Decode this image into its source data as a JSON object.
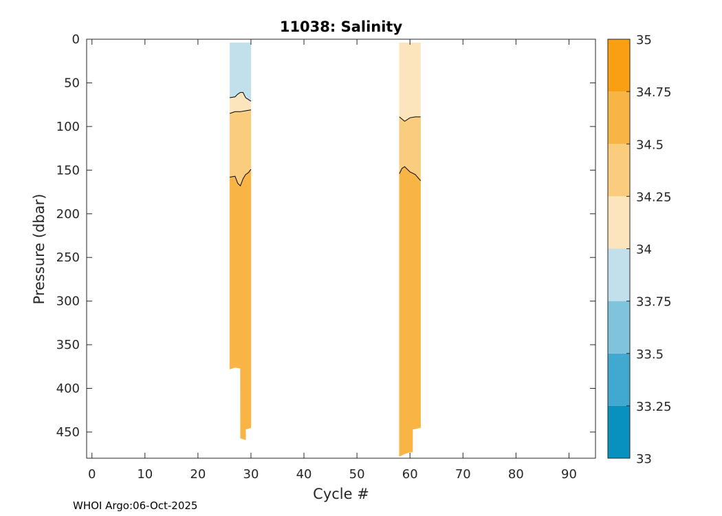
{
  "chart_data": {
    "type": "heatmap",
    "title": "11038:  Salinity",
    "xlabel": "Cycle #",
    "ylabel": "Pressure (dbar)",
    "xlim": [
      -1,
      95
    ],
    "ylim": [
      480,
      0
    ],
    "y_reversed": true,
    "xticks": [
      0,
      10,
      20,
      30,
      40,
      50,
      60,
      70,
      80,
      90
    ],
    "yticks": [
      0,
      50,
      100,
      150,
      200,
      250,
      300,
      350,
      400,
      450
    ],
    "grid": false,
    "colorbar": {
      "levels": [
        33,
        33.25,
        33.5,
        33.75,
        34,
        34.25,
        34.5,
        34.75,
        35
      ],
      "tick_labels": [
        "33",
        "33.25",
        "33.5",
        "33.75",
        "34",
        "34.25",
        "34.5",
        "34.75",
        "35"
      ],
      "colors": [
        "#0891BF",
        "#41A8CF",
        "#80C3DD",
        "#C1E0EC",
        "#FCE5BC",
        "#FACC7D",
        "#F9B446",
        "#FA9E12"
      ]
    },
    "profiles": [
      {
        "x_range": [
          26,
          30
        ],
        "bands": [
          {
            "salinity_bin": "33.75-34",
            "top": [
              [
                26,
                4
              ],
              [
                30,
                4
              ]
            ],
            "bottom": [
              [
                26,
                67
              ],
              [
                27,
                66
              ],
              [
                28,
                61
              ],
              [
                28.5,
                61
              ],
              [
                29,
                67
              ],
              [
                30,
                71
              ]
            ]
          },
          {
            "salinity_bin": "34-34.25",
            "top": [
              [
                26,
                67
              ],
              [
                27,
                66
              ],
              [
                28,
                61
              ],
              [
                28.5,
                61
              ],
              [
                29,
                67
              ],
              [
                30,
                71
              ]
            ],
            "bottom": [
              [
                26,
                85
              ],
              [
                27,
                83
              ],
              [
                28,
                83
              ],
              [
                29,
                82
              ],
              [
                30,
                81
              ]
            ]
          },
          {
            "salinity_bin": "34.25-34.5",
            "top": [
              [
                26,
                85
              ],
              [
                27,
                83
              ],
              [
                28,
                83
              ],
              [
                29,
                82
              ],
              [
                30,
                81
              ]
            ],
            "bottom": [
              [
                26,
                158
              ],
              [
                27,
                157
              ],
              [
                27.5,
                165
              ],
              [
                28,
                168
              ],
              [
                28.5,
                160
              ],
              [
                29,
                155
              ],
              [
                30,
                149
              ]
            ]
          },
          {
            "salinity_bin": "34.5-34.75",
            "top": [
              [
                26,
                158
              ],
              [
                27,
                157
              ],
              [
                27.5,
                165
              ],
              [
                28,
                168
              ],
              [
                28.5,
                160
              ],
              [
                29,
                155
              ],
              [
                30,
                149
              ]
            ],
            "bottom": [
              [
                26,
                378
              ],
              [
                27,
                376
              ],
              [
                28,
                377
              ],
              [
                28.01,
                457
              ],
              [
                29,
                459
              ],
              [
                29.01,
                447
              ],
              [
                30,
                445
              ]
            ]
          }
        ],
        "contours": [
          [
            [
              26,
              67
            ],
            [
              27,
              66
            ],
            [
              27.5,
              63
            ],
            [
              28,
              61
            ],
            [
              28.5,
              61
            ],
            [
              29,
              67
            ],
            [
              30,
              71
            ]
          ],
          [
            [
              26,
              85
            ],
            [
              27,
              83
            ],
            [
              28,
              83
            ],
            [
              29,
              82
            ],
            [
              30,
              81
            ]
          ],
          [
            [
              26,
              158
            ],
            [
              27,
              157
            ],
            [
              27.5,
              165
            ],
            [
              28,
              168
            ],
            [
              28.5,
              160
            ],
            [
              29,
              155
            ],
            [
              29.5,
              153
            ],
            [
              30,
              149
            ]
          ]
        ]
      },
      {
        "x_range": [
          58,
          62
        ],
        "bands": [
          {
            "salinity_bin": "34-34.25",
            "top": [
              [
                58,
                4
              ],
              [
                62,
                4
              ]
            ],
            "bottom": [
              [
                58,
                89
              ],
              [
                59,
                94
              ],
              [
                60,
                90
              ],
              [
                61,
                89
              ],
              [
                62,
                89
              ]
            ]
          },
          {
            "salinity_bin": "34.25-34.5",
            "top": [
              [
                58,
                89
              ],
              [
                59,
                94
              ],
              [
                60,
                90
              ],
              [
                61,
                89
              ],
              [
                62,
                89
              ]
            ],
            "bottom": [
              [
                58,
                154
              ],
              [
                59,
                146
              ],
              [
                60,
                152
              ],
              [
                61,
                155
              ],
              [
                62,
                162
              ]
            ]
          },
          {
            "salinity_bin": "34.5-34.75",
            "top": [
              [
                58,
                154
              ],
              [
                59,
                146
              ],
              [
                60,
                152
              ],
              [
                61,
                155
              ],
              [
                62,
                162
              ]
            ],
            "bottom": [
              [
                58,
                478
              ],
              [
                59,
                475
              ],
              [
                60,
                473
              ],
              [
                60.5,
                473
              ],
              [
                60.51,
                447
              ],
              [
                62,
                445
              ]
            ]
          }
        ],
        "contours": [
          [
            [
              58,
              89
            ],
            [
              59,
              94
            ],
            [
              60,
              90
            ],
            [
              61,
              89
            ],
            [
              62,
              89
            ]
          ],
          [
            [
              58,
              154
            ],
            [
              58.5,
              148
            ],
            [
              59,
              146
            ],
            [
              60,
              152
            ],
            [
              61,
              155
            ],
            [
              62,
              162
            ]
          ]
        ]
      }
    ]
  },
  "footer": "WHOI Argo:06-Oct-2025"
}
